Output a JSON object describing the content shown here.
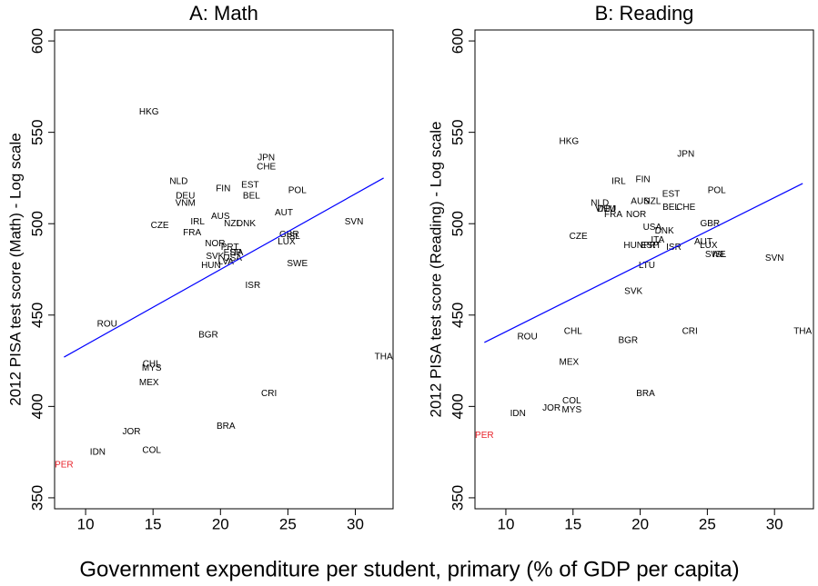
{
  "x_label": "Government expenditure per student, primary (% of GDP per capita)",
  "chart_data": [
    {
      "type": "scatter",
      "title": "A: Math",
      "y_label": "2012 PISA test score (Math) - Log scale",
      "xlim": [
        7.7,
        32.8
      ],
      "ylim": [
        344,
        606
      ],
      "xticks": [
        10,
        15,
        20,
        25,
        30
      ],
      "yticks": [
        350,
        400,
        450,
        500,
        550,
        600
      ],
      "series": [
        {
          "color": "#000000",
          "labels": [
            "HKG",
            "NLD",
            "JPN",
            "CHE",
            "EST",
            "BEL",
            "FIN",
            "POL",
            "DEU",
            "VNM",
            "AUT",
            "AUS",
            "IRL",
            "NZL",
            "DNK",
            "CZE",
            "FRA",
            "GBR",
            "ISL",
            "LUX",
            "SVN",
            "NOR",
            "PRT",
            "ESP",
            "ITA",
            "SVK",
            "USA",
            "LVA",
            "HUN",
            "SWE",
            "ISR",
            "ROU",
            "BGR",
            "THA",
            "CHL",
            "MYS",
            "MEX",
            "CRI",
            "JOR",
            "BRA",
            "COL",
            "IDN"
          ],
          "x": [
            14.7,
            16.9,
            23.4,
            23.4,
            22.2,
            22.3,
            20.2,
            25.7,
            17.4,
            17.4,
            24.7,
            20.0,
            18.3,
            20.9,
            21.9,
            15.5,
            17.9,
            25.1,
            25.4,
            24.9,
            29.9,
            19.6,
            20.7,
            20.9,
            21.2,
            19.6,
            20.9,
            20.4,
            19.3,
            25.7,
            22.4,
            11.6,
            19.1,
            32.1,
            14.9,
            14.9,
            14.7,
            23.6,
            13.4,
            20.4,
            14.9,
            10.9
          ],
          "values": [
            561,
            523,
            536,
            531,
            521,
            515,
            519,
            518,
            515,
            511,
            506,
            504,
            501,
            500,
            500,
            499,
            495,
            494,
            493,
            490,
            501,
            489,
            487,
            484,
            484,
            482,
            481,
            479,
            477,
            478,
            466,
            445,
            439,
            427,
            423,
            421,
            413,
            407,
            386,
            389,
            376,
            375
          ]
        },
        {
          "color": "#e8222a",
          "labels": [
            "PER"
          ],
          "x": [
            8.4
          ],
          "values": [
            368
          ]
        }
      ],
      "fit_line": {
        "color": "#0000ff",
        "x": [
          8.4,
          32.1
        ],
        "values": [
          427,
          525
        ]
      }
    },
    {
      "type": "scatter",
      "title": "B: Reading",
      "y_label": "2012 PISA test score (Reading) - Log scale",
      "xlim": [
        7.7,
        32.9
      ],
      "ylim": [
        344,
        606
      ],
      "xticks": [
        10,
        15,
        20,
        25,
        30
      ],
      "yticks": [
        350,
        400,
        450,
        500,
        550,
        600
      ],
      "series": [
        {
          "color": "#000000",
          "labels": [
            "HKG",
            "JPN",
            "IRL",
            "FIN",
            "POL",
            "EST",
            "AUS",
            "NZL",
            "NLD",
            "BEL",
            "CHE",
            "DEU",
            "VNM",
            "FRA",
            "NOR",
            "GBR",
            "USA",
            "DNK",
            "CZE",
            "SVN",
            "ITA",
            "AUT",
            "HUN",
            "ESP",
            "PRT",
            "LUX",
            "ISR",
            "SWE",
            "ISL",
            "LTU",
            "SVK",
            "CHL",
            "CRI",
            "THA",
            "ROU",
            "BGR",
            "MEX",
            "BRA",
            "COL",
            "JOR",
            "MYS",
            "IDN"
          ],
          "x": [
            14.7,
            23.4,
            18.4,
            20.2,
            25.7,
            22.3,
            20.0,
            20.9,
            17.0,
            22.3,
            23.4,
            17.5,
            17.4,
            18.0,
            19.7,
            25.2,
            20.9,
            21.8,
            15.4,
            30.0,
            21.3,
            24.7,
            19.5,
            20.7,
            20.9,
            25.1,
            22.5,
            25.6,
            25.9,
            20.5,
            19.5,
            15.0,
            23.7,
            32.1,
            11.6,
            19.1,
            14.7,
            20.4,
            14.9,
            13.4,
            14.9,
            10.9
          ],
          "values": [
            545,
            538,
            523,
            524,
            518,
            516,
            512,
            512,
            511,
            509,
            509,
            508,
            508,
            505,
            505,
            500,
            498,
            496,
            493,
            481,
            491,
            490,
            488,
            488,
            488,
            488,
            487,
            483,
            483,
            477,
            463,
            441,
            441,
            441,
            438,
            436,
            424,
            407,
            403,
            399,
            398,
            396
          ]
        },
        {
          "color": "#e8222a",
          "labels": [
            "PER"
          ],
          "x": [
            8.4
          ],
          "values": [
            384
          ]
        }
      ],
      "fit_line": {
        "color": "#0000ff",
        "x": [
          8.4,
          32.1
        ],
        "values": [
          435,
          522
        ]
      }
    }
  ]
}
